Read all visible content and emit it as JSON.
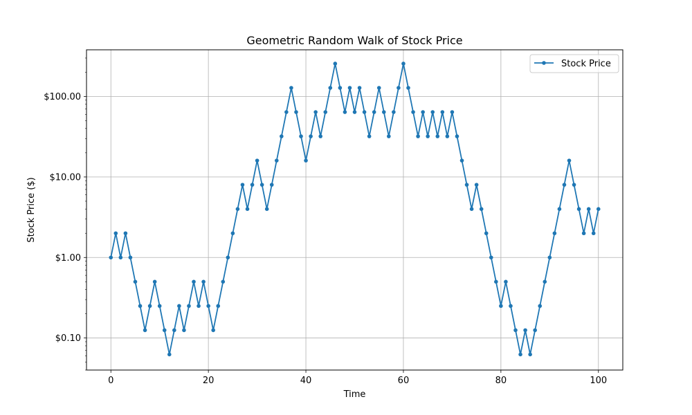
{
  "chart_data": {
    "type": "line",
    "title": "Geometric Random Walk of Stock Price",
    "xlabel": "Time",
    "ylabel": "Stock Price ($)",
    "xlim": [
      -5,
      105
    ],
    "ylim": [
      0.04,
      380
    ],
    "yscale": "log",
    "grid": true,
    "legend_position": "top-right",
    "x_ticks": [
      0,
      20,
      40,
      60,
      80,
      100
    ],
    "x_tick_labels": [
      "0",
      "20",
      "40",
      "60",
      "80",
      "100"
    ],
    "y_ticks": [
      0.1,
      1,
      10,
      100
    ],
    "y_tick_labels": [
      "$0.10",
      "$1.00",
      "$10.00",
      "$100.00"
    ],
    "series": [
      {
        "name": "Stock Price",
        "color": "#1f77b4",
        "marker": "circle",
        "x": [
          0,
          1,
          2,
          3,
          4,
          5,
          6,
          7,
          8,
          9,
          10,
          11,
          12,
          13,
          14,
          15,
          16,
          17,
          18,
          19,
          20,
          21,
          22,
          23,
          24,
          25,
          26,
          27,
          28,
          29,
          30,
          31,
          32,
          33,
          34,
          35,
          36,
          37,
          38,
          39,
          40,
          41,
          42,
          43,
          44,
          45,
          46,
          47,
          48,
          49,
          50,
          51,
          52,
          53,
          54,
          55,
          56,
          57,
          58,
          59,
          60,
          61,
          62,
          63,
          64,
          65,
          66,
          67,
          68,
          69,
          70,
          71,
          72,
          73,
          74,
          75,
          76,
          77,
          78,
          79,
          80,
          81,
          82,
          83,
          84,
          85,
          86,
          87,
          88,
          89,
          90,
          91,
          92,
          93,
          94,
          95,
          96,
          97,
          98,
          99,
          100
        ],
        "y": [
          1,
          2,
          1,
          2,
          1,
          0.5,
          0.25,
          0.125,
          0.25,
          0.5,
          0.25,
          0.125,
          0.0625,
          0.125,
          0.25,
          0.125,
          0.25,
          0.5,
          0.25,
          0.5,
          0.25,
          0.125,
          0.25,
          0.5,
          1,
          2,
          4,
          8,
          4,
          8,
          16,
          8,
          4,
          8,
          16,
          32,
          64,
          128,
          64,
          32,
          16,
          32,
          64,
          32,
          64,
          128,
          256,
          128,
          64,
          128,
          64,
          128,
          64,
          32,
          64,
          128,
          64,
          32,
          64,
          128,
          256,
          128,
          64,
          32,
          64,
          32,
          64,
          32,
          64,
          32,
          64,
          32,
          16,
          8,
          4,
          8,
          4,
          2,
          1,
          0.5,
          0.25,
          0.5,
          0.25,
          0.125,
          0.0625,
          0.125,
          0.0625,
          0.125,
          0.25,
          0.5,
          1,
          2,
          4,
          8,
          16,
          8,
          4,
          2,
          4,
          2,
          4
        ]
      }
    ]
  }
}
